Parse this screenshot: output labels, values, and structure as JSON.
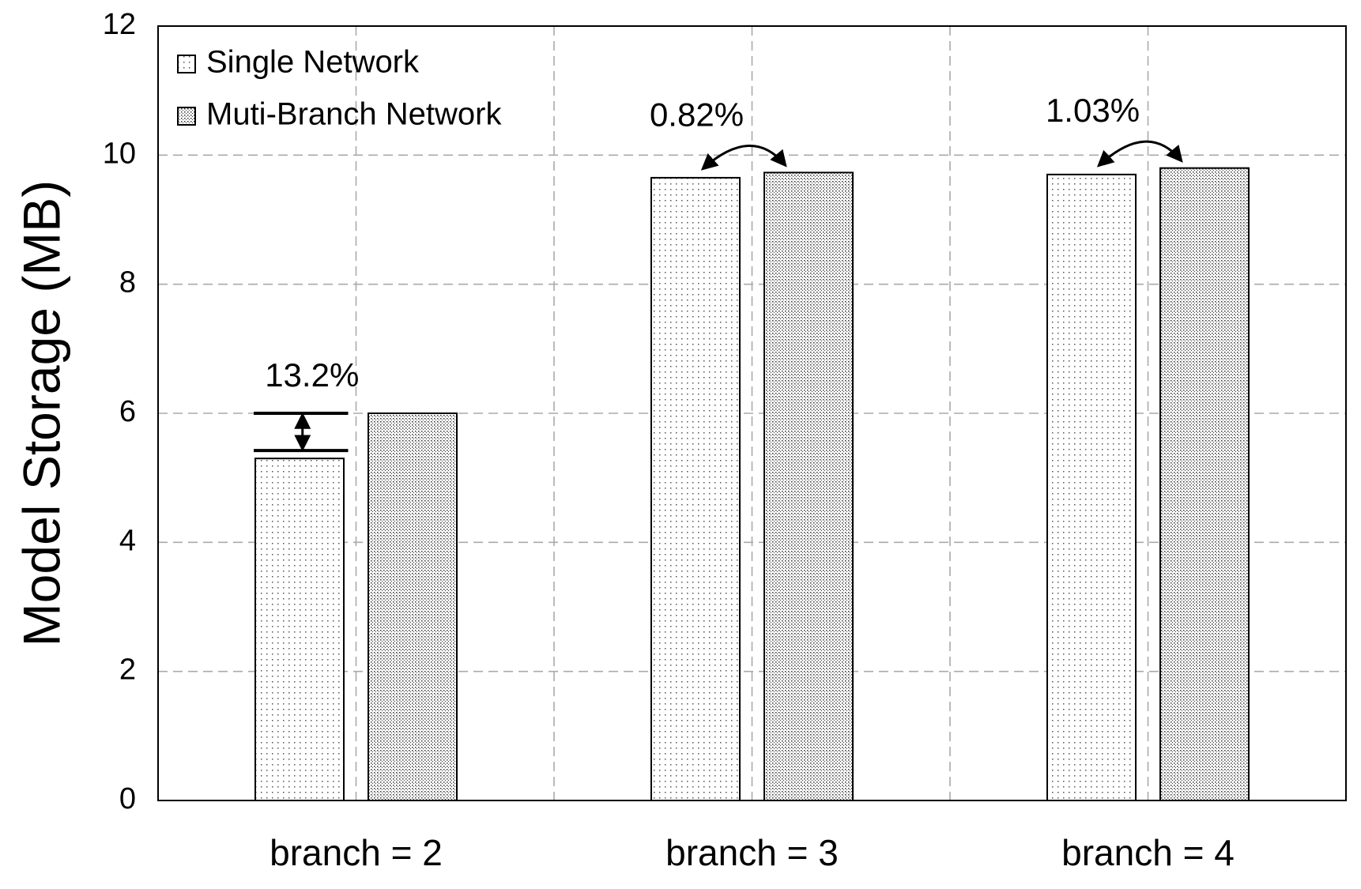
{
  "chart_data": {
    "type": "bar",
    "ylabel": "Model Storage (MB)",
    "categories": [
      "branch = 2",
      "branch = 3",
      "branch = 4"
    ],
    "series": [
      {
        "name": "Single Network",
        "color": "#555555",
        "values": [
          5.3,
          9.65,
          9.7
        ]
      },
      {
        "name": "Muti-Branch Network",
        "color": "#333333",
        "values": [
          6.0,
          9.73,
          9.8
        ]
      }
    ],
    "annotations": [
      "13.2%",
      "0.82%",
      "1.03%"
    ],
    "ylim": [
      0,
      12
    ],
    "yticks": [
      0,
      2,
      4,
      6,
      8,
      10,
      12
    ],
    "grid": true,
    "legend": "upper left"
  }
}
